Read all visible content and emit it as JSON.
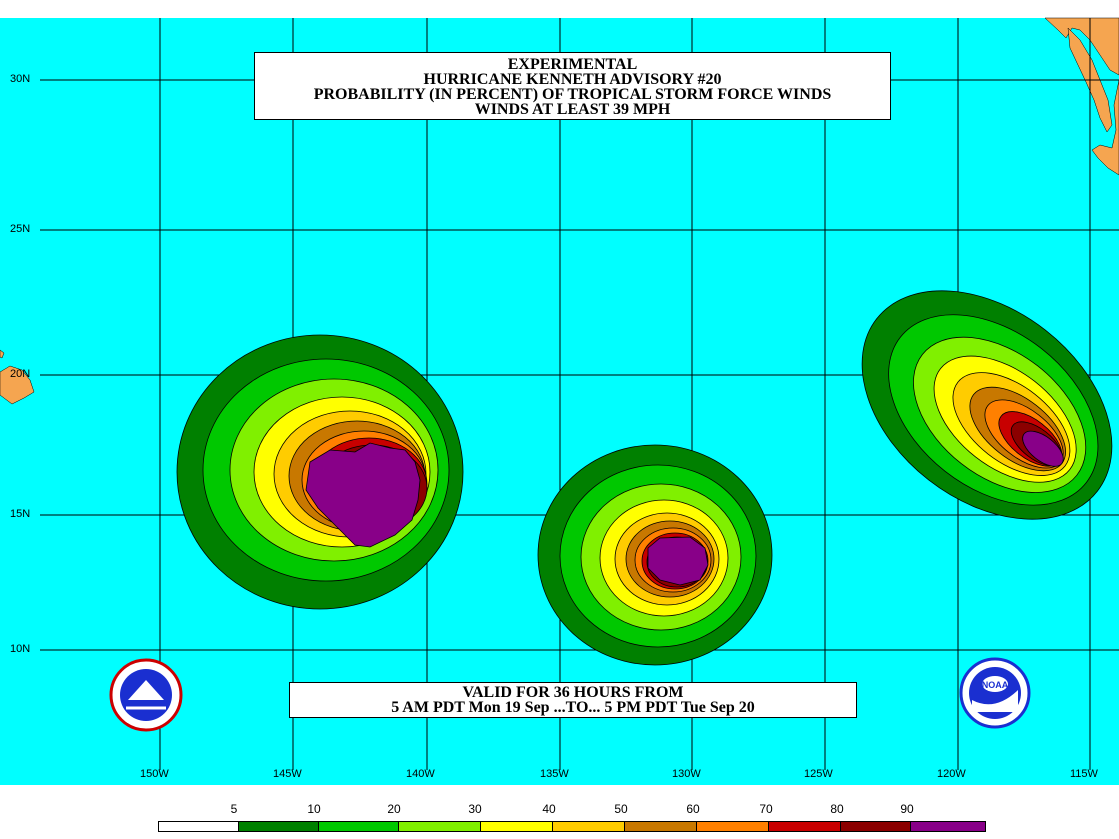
{
  "title": {
    "line1": "EXPERIMENTAL",
    "line2": "HURRICANE KENNETH ADVISORY #20",
    "line3": "PROBABILITY (IN PERCENT) OF TROPICAL STORM FORCE WINDS",
    "line4": "WINDS AT LEAST 39 MPH"
  },
  "valid": {
    "line1": "VALID FOR 36 HOURS FROM",
    "line2": "5 AM PDT Mon 19 Sep ...TO... 5 PM PDT Tue Sep 20"
  },
  "latitude_labels": [
    "30N",
    "25N",
    "20N",
    "15N",
    "10N"
  ],
  "longitude_labels": [
    "150W",
    "145W",
    "140W",
    "135W",
    "130W",
    "125W",
    "120W",
    "115W"
  ],
  "legend": {
    "labels": [
      "5",
      "10",
      "20",
      "30",
      "40",
      "50",
      "60",
      "70",
      "80",
      "90"
    ],
    "colors": [
      "#ffffff",
      "#008000",
      "#00c800",
      "#80f000",
      "#ffff00",
      "#ffcc00",
      "#c87800",
      "#ff8000",
      "#c80000",
      "#8b0000",
      "#880088"
    ]
  },
  "colors": {
    "ocean": "#00ffff",
    "land": "#f5a550",
    "grid": "#000000"
  },
  "logos": [
    "nws-logo",
    "noaa-logo"
  ]
}
